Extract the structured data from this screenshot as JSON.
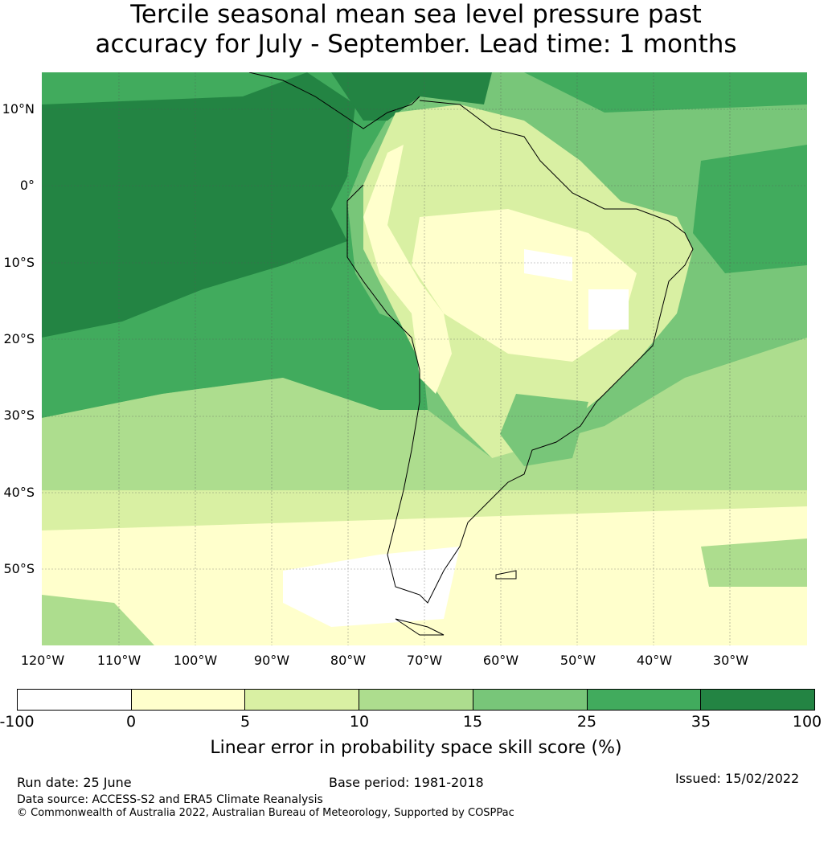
{
  "title_line1": "Tercile seasonal mean sea level pressure past",
  "title_line2": "accuracy for July - September. Lead time: 1 months",
  "lat_labels": [
    "10°N",
    "0°",
    "10°S",
    "20°S",
    "30°S",
    "40°S",
    "50°S"
  ],
  "lon_labels": [
    "120°W",
    "110°W",
    "100°W",
    "90°W",
    "80°W",
    "70°W",
    "60°W",
    "50°W",
    "40°W",
    "30°W"
  ],
  "colorbar": {
    "ticks": [
      "-100",
      "0",
      "5",
      "10",
      "15",
      "25",
      "35",
      "100"
    ],
    "colors": [
      "#ffffff",
      "#ffffcc",
      "#d9f0a3",
      "#addd8e",
      "#78c679",
      "#41ab5d",
      "#238443"
    ],
    "label": "Linear error in probability space skill score (%)"
  },
  "footer": {
    "run_date": "Run date: 25 June",
    "base_period": "Base period: 1981-2018",
    "issued": "Issued: 15/02/2022",
    "data_source": "Data source: ACCESS-S2 and ERA5 Climate Reanalysis",
    "copyright": "© Commonwealth of Australia 2022, Australian Bureau of Meteorology, Supported by COSPPac"
  }
}
